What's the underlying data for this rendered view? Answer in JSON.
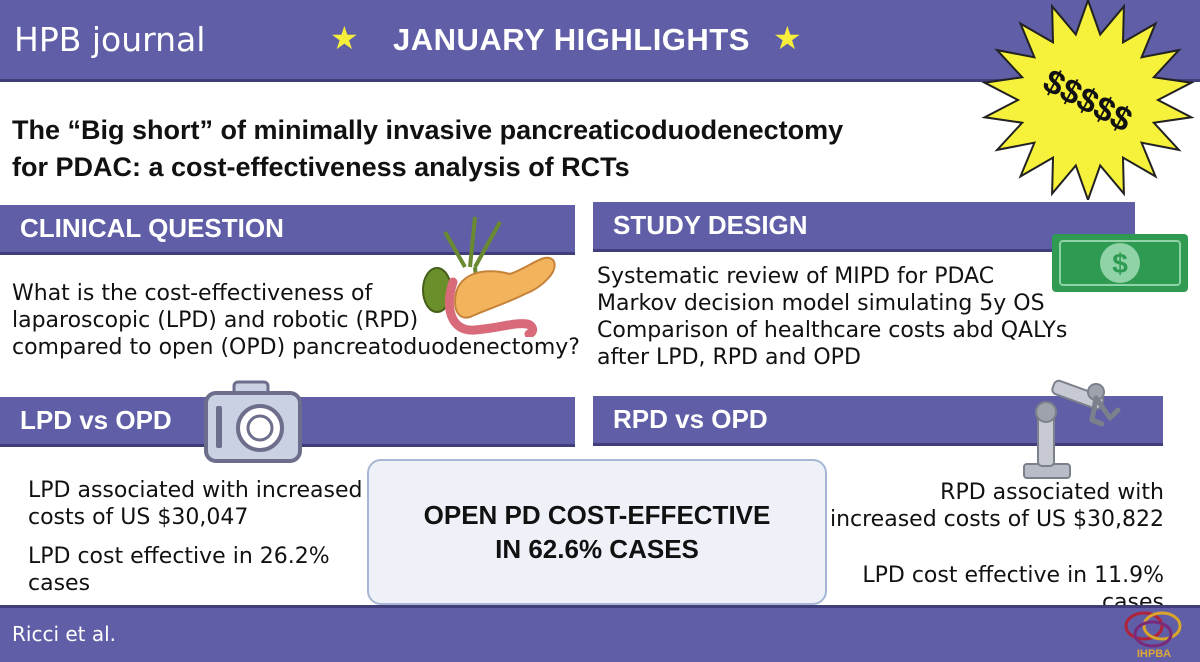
{
  "header": {
    "journal": "HPB journal",
    "highlights": "JANUARY HIGHLIGHTS",
    "burst_text": "$$$$$"
  },
  "title": {
    "line1": "The “Big short” of minimally invasive pancreaticoduodenectomy",
    "line2": "for PDAC: a cost-effectiveness analysis of RCTs"
  },
  "clinical_question": {
    "heading": "CLINICAL QUESTION",
    "lines": [
      "What is the cost-effectiveness of",
      "laparoscopic (LPD) and robotic (RPD)",
      "compared to open (OPD) pancreatoduodenectomy?"
    ]
  },
  "study_design": {
    "heading": "STUDY DESIGN",
    "lines": [
      "Systematic review of MIPD for PDAC",
      "Markov decision model simulating 5y OS",
      "Comparison of healthcare costs abd QALYs",
      "after LPD, RPD and OPD"
    ]
  },
  "lpd": {
    "heading": "LPD vs OPD",
    "cost_line1": "LPD associated with increased",
    "cost_line2": "costs of US $30,047",
    "eff_line1": "LPD cost effective in 26.2%",
    "eff_line2": "cases"
  },
  "rpd": {
    "heading": "RPD vs OPD",
    "cost_line1": "RPD associated with",
    "cost_line2": "increased costs of US $30,822",
    "eff_line1": "LPD cost effective in 11.9%",
    "eff_line2": "cases"
  },
  "result": {
    "line1": "OPEN PD COST-EFFECTIVE",
    "line2": "IN 62.6% CASES"
  },
  "footer": {
    "authors": "Ricci et al.",
    "logo_text": "IHPBA"
  },
  "icons": {
    "header_stars": "star-icon",
    "burst": "starburst-icon",
    "pancreas": "pancreas-illustration",
    "money": "dollar-bill-icon",
    "camera": "camera-icon",
    "robot": "robot-arm-icon",
    "logo": "ihpba-logo"
  },
  "colors": {
    "bar": "#5f5ea6",
    "star": "#f6ee3b",
    "burst": "#f6f13a",
    "money": "#2e9a52",
    "result_bg": "#eef2f8"
  }
}
